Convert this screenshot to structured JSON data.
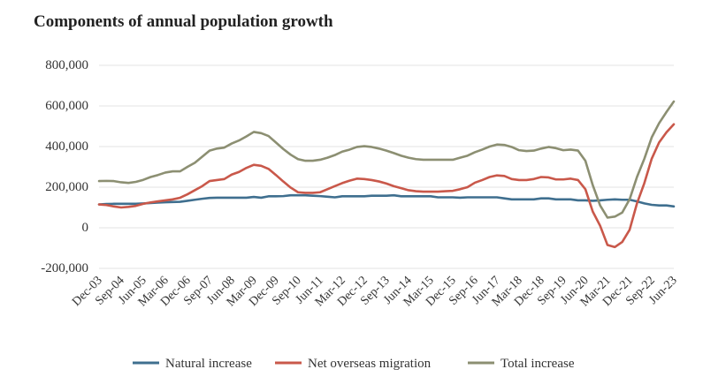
{
  "chart_data": {
    "type": "line",
    "title": "Components of annual population growth",
    "xlabel": "",
    "ylabel": "",
    "ylim": [
      -200000,
      800000
    ],
    "yticks": [
      -200000,
      0,
      200000,
      400000,
      600000,
      800000
    ],
    "ytick_labels": [
      "-200,000",
      "0",
      "200,000",
      "400,000",
      "600,000",
      "800,000"
    ],
    "x_tick_labels": [
      "Dec-03",
      "Sep-04",
      "Jun-05",
      "Mar-06",
      "Dec-06",
      "Sep-07",
      "Jun-08",
      "Mar-09",
      "Dec-09",
      "Sep-10",
      "Jun-11",
      "Mar-12",
      "Dec-12",
      "Sep-13",
      "Jun-14",
      "Mar-15",
      "Dec-15",
      "Sep-16",
      "Jun-17",
      "Mar-18",
      "Dec-18",
      "Sep-19",
      "Jun-20",
      "Mar-21",
      "Dec-21",
      "Sep-22",
      "Jun-23"
    ],
    "x": [
      "Dec-03",
      "Mar-04",
      "Jun-04",
      "Sep-04",
      "Dec-04",
      "Mar-05",
      "Jun-05",
      "Sep-05",
      "Dec-05",
      "Mar-06",
      "Jun-06",
      "Sep-06",
      "Dec-06",
      "Mar-07",
      "Jun-07",
      "Sep-07",
      "Dec-07",
      "Mar-08",
      "Jun-08",
      "Sep-08",
      "Dec-08",
      "Mar-09",
      "Jun-09",
      "Sep-09",
      "Dec-09",
      "Mar-10",
      "Jun-10",
      "Sep-10",
      "Dec-10",
      "Mar-11",
      "Jun-11",
      "Sep-11",
      "Dec-11",
      "Mar-12",
      "Jun-12",
      "Sep-12",
      "Dec-12",
      "Mar-13",
      "Jun-13",
      "Sep-13",
      "Dec-13",
      "Mar-14",
      "Jun-14",
      "Sep-14",
      "Dec-14",
      "Mar-15",
      "Jun-15",
      "Sep-15",
      "Dec-15",
      "Mar-16",
      "Jun-16",
      "Sep-16",
      "Dec-16",
      "Mar-17",
      "Jun-17",
      "Sep-17",
      "Dec-17",
      "Mar-18",
      "Jun-18",
      "Sep-18",
      "Dec-18",
      "Mar-19",
      "Jun-19",
      "Sep-19",
      "Dec-19",
      "Mar-20",
      "Jun-20",
      "Sep-20",
      "Dec-20",
      "Mar-21",
      "Jun-21",
      "Sep-21",
      "Dec-21",
      "Mar-22",
      "Jun-22",
      "Sep-22",
      "Dec-22",
      "Mar-23",
      "Jun-23"
    ],
    "series": [
      {
        "name": "Natural increase",
        "color": "#3f6f8f",
        "values": [
          115000,
          117000,
          118000,
          118000,
          118000,
          118000,
          120000,
          122000,
          124000,
          126000,
          127000,
          128000,
          133000,
          138000,
          143000,
          147000,
          148000,
          148000,
          148000,
          148000,
          148000,
          152000,
          148000,
          155000,
          155000,
          156000,
          160000,
          160000,
          160000,
          158000,
          156000,
          153000,
          150000,
          155000,
          155000,
          155000,
          155000,
          158000,
          158000,
          158000,
          160000,
          155000,
          155000,
          155000,
          155000,
          155000,
          150000,
          150000,
          150000,
          148000,
          150000,
          150000,
          150000,
          150000,
          150000,
          145000,
          140000,
          140000,
          140000,
          140000,
          145000,
          145000,
          140000,
          140000,
          140000,
          135000,
          135000,
          133000,
          135000,
          138000,
          140000,
          138000,
          138000,
          130000,
          120000,
          113000,
          110000,
          110000,
          105000
        ]
      },
      {
        "name": "Net overseas migration",
        "color": "#c9584a",
        "values": [
          115000,
          112000,
          105000,
          100000,
          103000,
          108000,
          118000,
          125000,
          130000,
          135000,
          140000,
          148000,
          165000,
          185000,
          205000,
          230000,
          235000,
          240000,
          262000,
          275000,
          295000,
          310000,
          305000,
          290000,
          260000,
          228000,
          198000,
          175000,
          172000,
          172000,
          175000,
          190000,
          205000,
          220000,
          232000,
          242000,
          240000,
          235000,
          228000,
          218000,
          205000,
          195000,
          185000,
          180000,
          178000,
          178000,
          178000,
          180000,
          182000,
          190000,
          200000,
          222000,
          235000,
          250000,
          258000,
          255000,
          240000,
          235000,
          235000,
          240000,
          250000,
          248000,
          238000,
          238000,
          242000,
          235000,
          190000,
          80000,
          10000,
          -85000,
          -95000,
          -70000,
          -10000,
          120000,
          220000,
          340000,
          420000,
          470000,
          510000
        ]
      },
      {
        "name": "Total increase",
        "color": "#8c8f72",
        "values": [
          230000,
          231000,
          230000,
          224000,
          221000,
          226000,
          236000,
          250000,
          260000,
          272000,
          278000,
          278000,
          300000,
          320000,
          350000,
          380000,
          390000,
          395000,
          415000,
          430000,
          450000,
          472000,
          466000,
          452000,
          420000,
          388000,
          360000,
          338000,
          330000,
          330000,
          335000,
          345000,
          358000,
          375000,
          385000,
          398000,
          402000,
          398000,
          390000,
          380000,
          368000,
          355000,
          345000,
          338000,
          335000,
          335000,
          335000,
          335000,
          335000,
          345000,
          355000,
          372000,
          385000,
          400000,
          410000,
          408000,
          398000,
          382000,
          378000,
          380000,
          390000,
          398000,
          392000,
          382000,
          385000,
          380000,
          330000,
          210000,
          110000,
          50000,
          55000,
          75000,
          140000,
          250000,
          340000,
          445000,
          515000,
          570000,
          622000
        ]
      }
    ],
    "legend": "bottom",
    "grid": true
  }
}
